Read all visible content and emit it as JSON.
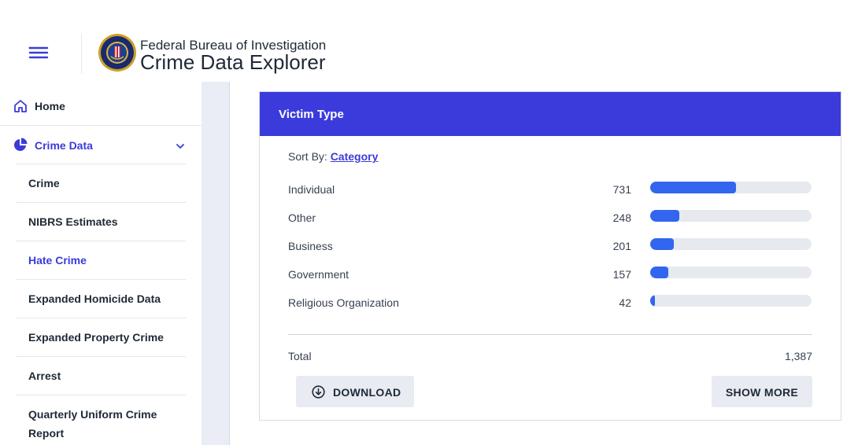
{
  "header": {
    "agency": "Federal Bureau of Investigation",
    "app_title": "Crime Data Explorer",
    "menu_icon": "hamburger-icon",
    "logo": "fbi-seal"
  },
  "sidebar": {
    "home_label": "Home",
    "crime_data_label": "Crime Data",
    "items": [
      {
        "label": "Crime"
      },
      {
        "label": "NIBRS Estimates"
      },
      {
        "label": "Hate Crime",
        "active": true
      },
      {
        "label": "Expanded Homicide Data"
      },
      {
        "label": "Expanded Property Crime"
      },
      {
        "label": "Arrest"
      },
      {
        "label": "Quarterly Uniform Crime Report"
      }
    ]
  },
  "card": {
    "title": "Victim Type",
    "sort_prefix": "Sort By:",
    "sort_value": "Category",
    "rows": [
      {
        "name": "Individual",
        "count": "731",
        "value": 731
      },
      {
        "name": "Other",
        "count": "248",
        "value": 248
      },
      {
        "name": "Business",
        "count": "201",
        "value": 201
      },
      {
        "name": "Government",
        "count": "157",
        "value": 157
      },
      {
        "name": "Religious Organization",
        "count": "42",
        "value": 42
      }
    ],
    "total_label": "Total",
    "total_value": "1,387",
    "download_label": "DOWNLOAD",
    "show_more_label": "SHOW MORE"
  },
  "colors": {
    "accent": "#3b3bdb",
    "bar_fill": "#3366ee",
    "bar_track": "#e6e9ee"
  }
}
